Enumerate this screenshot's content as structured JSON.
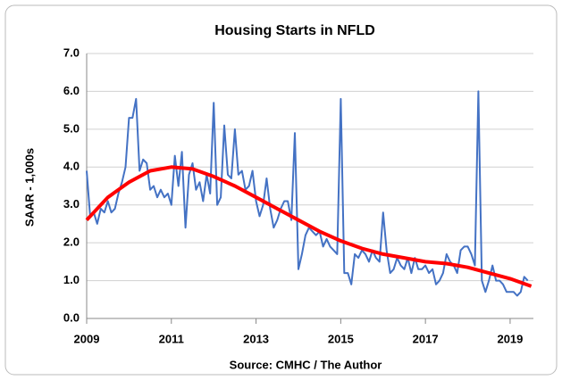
{
  "chart_data": {
    "type": "line",
    "title": "Housing Starts in NFLD",
    "ylabel": "SAAR - 1,000s",
    "xlabel": "Source:  CMHC / The Author",
    "xlim": [
      2009,
      2019.55
    ],
    "xticks": [
      2009,
      2011,
      2013,
      2015,
      2017,
      2019
    ],
    "ylim": [
      0,
      7
    ],
    "yticks": [
      {
        "value": 0,
        "label": "0.0"
      },
      {
        "value": 1,
        "label": "1.0"
      },
      {
        "value": 2,
        "label": "2.0"
      },
      {
        "value": 3,
        "label": "3.0"
      },
      {
        "value": 4,
        "label": "4.0"
      },
      {
        "value": 5,
        "label": "5.0"
      },
      {
        "value": 6,
        "label": "6.0"
      },
      {
        "value": 7,
        "label": "7.0"
      }
    ],
    "grid": true,
    "series": [
      {
        "color": "#4472c4",
        "width": 2,
        "x": [
          2009,
          2009.083,
          2009.167,
          2009.25,
          2009.333,
          2009.417,
          2009.5,
          2009.583,
          2009.667,
          2009.75,
          2009.833,
          2009.917,
          2010,
          2010.083,
          2010.167,
          2010.25,
          2010.333,
          2010.417,
          2010.5,
          2010.583,
          2010.667,
          2010.75,
          2010.833,
          2010.917,
          2011,
          2011.083,
          2011.167,
          2011.25,
          2011.333,
          2011.417,
          2011.5,
          2011.583,
          2011.667,
          2011.75,
          2011.833,
          2011.917,
          2012,
          2012.083,
          2012.167,
          2012.25,
          2012.333,
          2012.417,
          2012.5,
          2012.583,
          2012.667,
          2012.75,
          2012.833,
          2012.917,
          2013,
          2013.083,
          2013.167,
          2013.25,
          2013.333,
          2013.417,
          2013.5,
          2013.583,
          2013.667,
          2013.75,
          2013.833,
          2013.917,
          2014,
          2014.083,
          2014.167,
          2014.25,
          2014.333,
          2014.417,
          2014.5,
          2014.583,
          2014.667,
          2014.75,
          2014.833,
          2014.917,
          2015,
          2015.083,
          2015.167,
          2015.25,
          2015.333,
          2015.417,
          2015.5,
          2015.583,
          2015.667,
          2015.75,
          2015.833,
          2015.917,
          2016,
          2016.083,
          2016.167,
          2016.25,
          2016.333,
          2016.417,
          2016.5,
          2016.583,
          2016.667,
          2016.75,
          2016.833,
          2016.917,
          2017,
          2017.083,
          2017.167,
          2017.25,
          2017.333,
          2017.417,
          2017.5,
          2017.583,
          2017.667,
          2017.75,
          2017.833,
          2017.917,
          2018,
          2018.083,
          2018.167,
          2018.25,
          2018.333,
          2018.417,
          2018.5,
          2018.583,
          2018.667,
          2018.75,
          2018.833,
          2018.917,
          2019,
          2019.083,
          2019.167,
          2019.25,
          2019.333,
          2019.417
        ],
        "values": [
          3.9,
          2.7,
          2.8,
          2.5,
          2.9,
          2.8,
          3.1,
          2.8,
          2.9,
          3.3,
          3.6,
          4.0,
          5.3,
          5.3,
          5.8,
          3.9,
          4.2,
          4.1,
          3.4,
          3.5,
          3.2,
          3.4,
          3.2,
          3.3,
          3.0,
          4.3,
          3.5,
          4.4,
          2.4,
          3.8,
          4.1,
          3.4,
          3.6,
          3.1,
          3.8,
          3.3,
          5.7,
          3.0,
          3.2,
          5.1,
          3.8,
          3.7,
          5.0,
          3.8,
          3.9,
          3.4,
          3.5,
          3.9,
          3.1,
          2.7,
          3.0,
          3.7,
          2.9,
          2.4,
          2.6,
          2.9,
          3.1,
          3.1,
          2.6,
          4.9,
          1.3,
          1.7,
          2.2,
          2.4,
          2.3,
          2.2,
          2.3,
          1.9,
          2.1,
          1.9,
          1.8,
          1.7,
          5.8,
          1.2,
          1.2,
          0.9,
          1.7,
          1.6,
          1.8,
          1.7,
          1.5,
          1.8,
          1.6,
          1.5,
          2.8,
          1.8,
          1.2,
          1.3,
          1.6,
          1.4,
          1.3,
          1.6,
          1.2,
          1.6,
          1.3,
          1.3,
          1.4,
          1.2,
          1.3,
          0.9,
          1.0,
          1.2,
          1.7,
          1.5,
          1.4,
          1.2,
          1.8,
          1.9,
          1.9,
          1.7,
          1.4,
          6.0,
          1.0,
          0.7,
          1.0,
          1.4,
          1.0,
          1.0,
          0.9,
          0.7,
          0.7,
          0.7,
          0.6,
          0.7,
          1.1,
          1.0
        ]
      },
      {
        "color": "#ff0000",
        "width": 4,
        "x": [
          2009,
          2009.5,
          2010,
          2010.5,
          2011,
          2011.5,
          2012,
          2012.5,
          2013,
          2013.5,
          2014,
          2014.5,
          2015,
          2015.5,
          2016,
          2016.5,
          2017,
          2017.5,
          2018,
          2018.5,
          2019,
          2019.5
        ],
        "values": [
          2.6,
          3.2,
          3.6,
          3.9,
          4.0,
          3.95,
          3.75,
          3.5,
          3.2,
          2.9,
          2.6,
          2.3,
          2.05,
          1.85,
          1.7,
          1.6,
          1.5,
          1.45,
          1.35,
          1.2,
          1.05,
          0.85
        ]
      }
    ]
  }
}
